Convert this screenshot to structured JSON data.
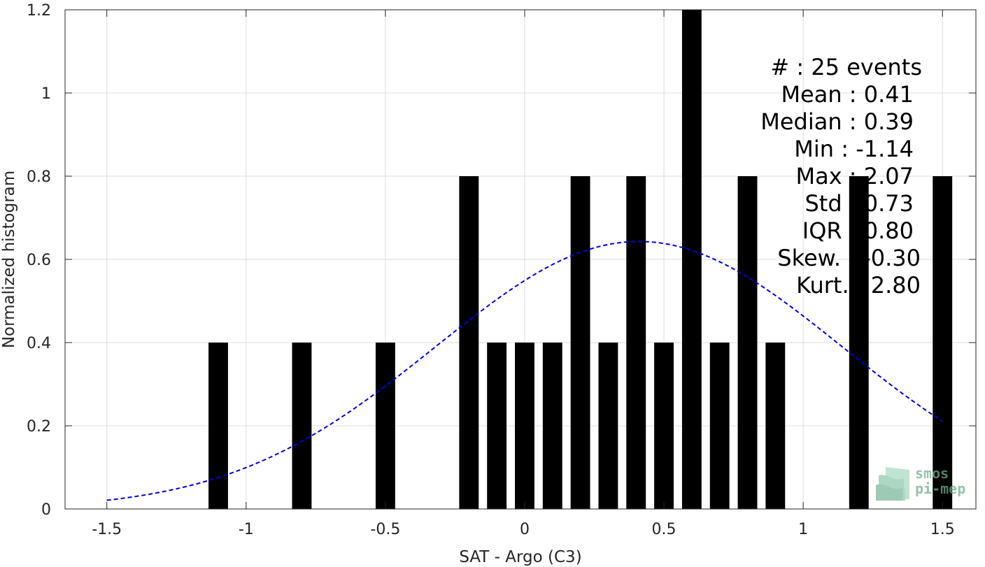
{
  "chart_data": {
    "type": "bar",
    "xlabel": "SAT - Argo (C3)",
    "ylabel": "Normalized histogram",
    "xlim": [
      -1.65,
      1.62
    ],
    "ylim": [
      0,
      1.2
    ],
    "xticks": [
      -1.5,
      -1,
      -0.5,
      0,
      0.5,
      1,
      1.5
    ],
    "xtick_labels": [
      "-1.5",
      "-1",
      "-0.5",
      "0",
      "0.5",
      "1",
      "1.5"
    ],
    "yticks": [
      0,
      0.2,
      0.4,
      0.6,
      0.8,
      1,
      1.2
    ],
    "ytick_labels": [
      "0",
      "0.2",
      "0.4",
      "0.6",
      "0.8",
      "1",
      "1.2"
    ],
    "grid": true,
    "bar_width": 0.07,
    "bars": [
      {
        "x": -1.1,
        "value": 0.4
      },
      {
        "x": -0.8,
        "value": 0.4
      },
      {
        "x": -0.5,
        "value": 0.4
      },
      {
        "x": -0.2,
        "value": 0.8
      },
      {
        "x": -0.1,
        "value": 0.4
      },
      {
        "x": 0.0,
        "value": 0.4
      },
      {
        "x": 0.1,
        "value": 0.4
      },
      {
        "x": 0.2,
        "value": 0.8
      },
      {
        "x": 0.3,
        "value": 0.4
      },
      {
        "x": 0.4,
        "value": 0.8
      },
      {
        "x": 0.5,
        "value": 0.4
      },
      {
        "x": 0.6,
        "value": 1.2
      },
      {
        "x": 0.7,
        "value": 0.4
      },
      {
        "x": 0.8,
        "value": 0.8
      },
      {
        "x": 0.9,
        "value": 0.4
      },
      {
        "x": 1.2,
        "value": 0.8
      },
      {
        "x": 1.5,
        "value": 0.8
      }
    ],
    "bar_color": "#000000",
    "fit_curve": {
      "style": "dashed",
      "color": "#0000e0",
      "mean": 0.41,
      "std": 0.73,
      "peak": 0.643,
      "x_range": [
        -1.5,
        1.5
      ]
    }
  },
  "stats": {
    "events": "#  : 25 events",
    "mean": "Mean : 0.41",
    "median": "Median : 0.39",
    "min": "Min : -1.14",
    "max": "Max : 2.07",
    "std": "Std : 0.73",
    "iqr": "IQR : 0.80",
    "skew": "Skew. : -0.30",
    "kurt": "Kurt. : 2.80"
  },
  "logo": {
    "line1": "smos",
    "line2": "pi-mep"
  }
}
